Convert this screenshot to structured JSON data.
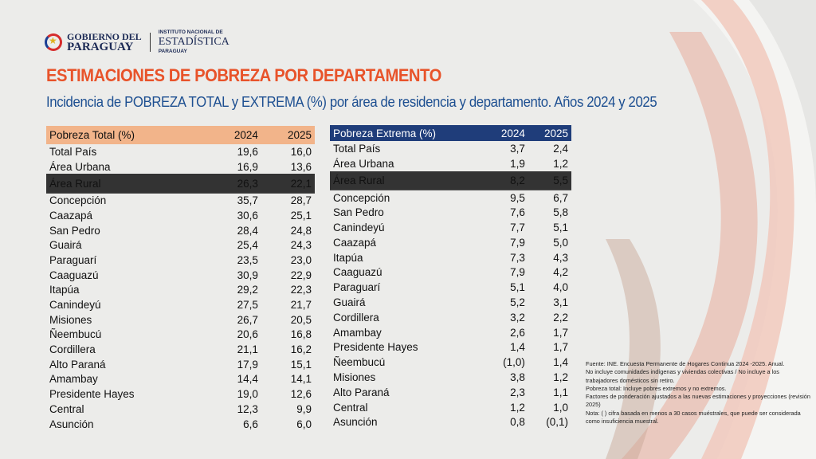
{
  "header": {
    "gov_line1": "GOBIERNO DEL",
    "gov_line2": "PARAGUAY",
    "ine_line1": "INSTITUTO NACIONAL DE",
    "ine_line2": "ESTADÍSTICA",
    "ine_line3": "PARAGUAY"
  },
  "title": "ESTIMACIONES DE POBREZA POR DEPARTAMENTO",
  "subtitle": "Incidencia de POBREZA TOTAL y EXTREMA (%) por área de residencia y departamento. Años 2024 y 2025",
  "total": {
    "headers": [
      "Pobreza Total (%)",
      "2024",
      "2025"
    ],
    "rows": [
      [
        "Total País",
        "19,6",
        "16,0"
      ],
      [
        "Área Urbana",
        "16,9",
        "13,6"
      ],
      [
        "Área Rural",
        "26,3",
        "22,1"
      ],
      [
        "Concepción",
        "35,7",
        "28,7"
      ],
      [
        "Caazapá",
        "30,6",
        "25,1"
      ],
      [
        "San Pedro",
        "28,4",
        "24,8"
      ],
      [
        "Guairá",
        "25,4",
        "24,3"
      ],
      [
        "Paraguarí",
        "23,5",
        "23,0"
      ],
      [
        "Caaguazú",
        "30,9",
        "22,9"
      ],
      [
        "Itapúa",
        "29,2",
        "22,3"
      ],
      [
        "Canindeyú",
        "27,5",
        "21,7"
      ],
      [
        "Misiones",
        "26,7",
        "20,5"
      ],
      [
        "Ñeembucú",
        "20,6",
        "16,8"
      ],
      [
        "Cordillera",
        "21,1",
        "16,2"
      ],
      [
        "Alto Paraná",
        "17,9",
        "15,1"
      ],
      [
        "Amambay",
        "14,4",
        "14,1"
      ],
      [
        "Presidente Hayes",
        "19,0",
        "12,6"
      ],
      [
        "Central",
        "12,3",
        "9,9"
      ],
      [
        "Asunción",
        "6,6",
        "6,0"
      ]
    ]
  },
  "extrema": {
    "headers": [
      "Pobreza Extrema (%)",
      "2024",
      "2025"
    ],
    "rows": [
      [
        "Total País",
        "3,7",
        "2,4"
      ],
      [
        "Área Urbana",
        "1,9",
        "1,2"
      ],
      [
        "Área Rural",
        "8,2",
        "5,5"
      ],
      [
        "Concepción",
        "9,5",
        "6,7"
      ],
      [
        "San Pedro",
        "7,6",
        "5,8"
      ],
      [
        "Canindeyú",
        "7,7",
        "5,1"
      ],
      [
        "Caazapá",
        "7,9",
        "5,0"
      ],
      [
        "Itapúa",
        "7,3",
        "4,3"
      ],
      [
        "Caaguazú",
        "7,9",
        "4,2"
      ],
      [
        "Paraguarí",
        "5,1",
        "4,0"
      ],
      [
        "Guairá",
        "5,2",
        "3,1"
      ],
      [
        "Cordillera",
        "3,2",
        "2,2"
      ],
      [
        "Amambay",
        "2,6",
        "1,7"
      ],
      [
        "Presidente Hayes",
        "1,4",
        "1,7"
      ],
      [
        "Ñeembucú",
        "(1,0)",
        "1,4"
      ],
      [
        "Misiones",
        "3,8",
        "1,2"
      ],
      [
        "Alto Paraná",
        "2,3",
        "1,1"
      ],
      [
        "Central",
        "1,2",
        "1,0"
      ],
      [
        "Asunción",
        "0,8",
        "(0,1)"
      ]
    ]
  },
  "notes": [
    "Fuente: INE. Encuesta Permanente de Hogares Continua 2024 -2025. Anual.",
    "No incluye comunidades indígenas y viviendas colectivas / No incluye a los trabajadores domésticos sin retiro.",
    "Pobreza total: Incluye pobres extremos y no extremos.",
    "Factores de ponderación ajustados a las nuevas estimaciones y proyecciones (revisión 2025)",
    "Nota: ( ) cifra basada en menos a 30 casos muéstrales, que puede ser considerada como insuficiencia muestral."
  ]
}
